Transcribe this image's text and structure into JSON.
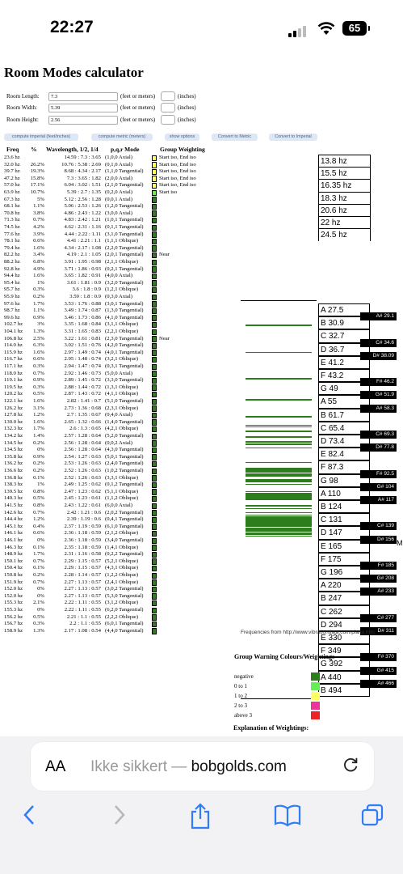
{
  "status_bar": {
    "time": "22:27",
    "battery": "65"
  },
  "page": {
    "title": "Room Modes calculator",
    "inputs": [
      {
        "label": "Room Length:",
        "value": "7.3",
        "unit": "(feet or meters)",
        "unit2": "(inches)"
      },
      {
        "label": "Room Width:",
        "value": "5.39",
        "unit": "(feet or meters)",
        "unit2": "(inches)"
      },
      {
        "label": "Room Height:",
        "value": "2.56",
        "unit": "(feet or meters)",
        "unit2": "(inches)"
      }
    ],
    "buttons": [
      "compute imperial (feet/inches)",
      "compute metric (meters)",
      "show options",
      "Convert to Metric",
      "Convert to Imperial"
    ],
    "headers": {
      "freq": "Freq",
      "pct": "%",
      "wave": "Wavelength, 1/2, 1/4",
      "mode": "p,q,r Mode",
      "group": "Group Weighting"
    },
    "rows": [
      {
        "f": "23.6 hz",
        "p": "",
        "w": "14.59 : 7.3 : 3.65",
        "m": "(1,0,0 Axial)",
        "g": "Start iso, End iso",
        "c": "#ffff66"
      },
      {
        "f": "32.0 hz",
        "p": "26.2%",
        "w": "10.76 : 5.38 : 2.69",
        "m": "(0,1,0 Axial)",
        "g": "Start iso, End iso",
        "c": "#ffff66"
      },
      {
        "f": "39.7 hz",
        "p": "19.3%",
        "w": "8.68 : 4.34 : 2.17",
        "m": "(1,1,0 Tangential)",
        "g": "Start iso, End iso",
        "c": "#ffff66"
      },
      {
        "f": "47.2 hz",
        "p": "15.8%",
        "w": "7.3 : 3.65 : 1.82",
        "m": "(2,0,0 Axial)",
        "g": "Start iso, End iso",
        "c": "#ffff66"
      },
      {
        "f": "57.0 hz",
        "p": "17.1%",
        "w": "6.04 : 3.02 : 1.51",
        "m": "(2,1,0 Tangential)",
        "g": "Start iso, End iso",
        "c": "#ffff66"
      },
      {
        "f": "63.9 hz",
        "p": "10.7%",
        "w": "5.39 : 2.7 : 1.35",
        "m": "(0,2,0 Axial)",
        "g": "Start iso",
        "c": "#66ee55"
      },
      {
        "f": "67.3 hz",
        "p": "5%",
        "w": "5.12 : 2.56 : 1.28",
        "m": "(0,0,1 Axial)",
        "g": "",
        "c": "#2d7d1d"
      },
      {
        "f": "68.1 hz",
        "p": "1.1%",
        "w": "5.06 : 2.53 : 1.26",
        "m": "(1,2,0 Tangential)",
        "g": "",
        "c": "#2d7d1d"
      },
      {
        "f": "70.8 hz",
        "p": "3.8%",
        "w": "4.86 : 2.43 : 1.22",
        "m": "(3,0,0 Axial)",
        "g": "",
        "c": "#2d7d1d"
      },
      {
        "f": "71.3 hz",
        "p": "0.7%",
        "w": "4.83 : 2.42 : 1.21",
        "m": "(1,0,1 Tangential)",
        "g": "",
        "c": "#2d7d1d"
      },
      {
        "f": "74.5 hz",
        "p": "4.2%",
        "w": "4.62 : 2.31 : 1.16",
        "m": "(0,1,1 Tangential)",
        "g": "",
        "c": "#2d7d1d"
      },
      {
        "f": "77.6 hz",
        "p": "3.9%",
        "w": "4.44 : 2.22 : 1.11",
        "m": "(3,1,0 Tangential)",
        "g": "",
        "c": "#2d7d1d"
      },
      {
        "f": "78.1 hz",
        "p": "0.6%",
        "w": "4.41 : 2.21 : 1.1",
        "m": "(1,1,1 Oblique)",
        "g": "",
        "c": "#2d7d1d"
      },
      {
        "f": "79.4 hz",
        "p": "1.6%",
        "w": "4.34 : 2.17 : 1.08",
        "m": "(2,2,0 Tangential)",
        "g": "",
        "c": "#2d7d1d"
      },
      {
        "f": "82.2 hz",
        "p": "3.4%",
        "w": "4.19 : 2.1 : 1.05",
        "m": "(2,0,1 Tangential)",
        "g": "Near",
        "c": "#2d7d1d"
      },
      {
        "f": "88.2 hz",
        "p": "6.8%",
        "w": "3.91 : 1.95 : 0.98",
        "m": "(2,1,1 Oblique)",
        "g": "",
        "c": "#2d7d1d"
      },
      {
        "f": "92.8 hz",
        "p": "4.9%",
        "w": "3.71 : 1.86 : 0.93",
        "m": "(0,2,1 Tangential)",
        "g": "",
        "c": "#2d7d1d"
      },
      {
        "f": "94.4 hz",
        "p": "1.6%",
        "w": "3.65 : 1.82 : 0.91",
        "m": "(4,0,0 Axial)",
        "g": "",
        "c": "#2d7d1d"
      },
      {
        "f": "95.4 hz",
        "p": "1%",
        "w": "3.61 : 1.81 : 0.9",
        "m": "(3,2,0 Tangential)",
        "g": "",
        "c": "#2d7d1d"
      },
      {
        "f": "95.7 hz",
        "p": "0.3%",
        "w": "3.6 : 1.8 : 0.9",
        "m": "(1,2,1 Oblique)",
        "g": "",
        "c": "#2d7d1d"
      },
      {
        "f": "95.9 hz",
        "p": "0.2%",
        "w": "3.59 : 1.8 : 0.9",
        "m": "(0,3,0 Axial)",
        "g": "",
        "c": "#2d7d1d"
      },
      {
        "f": "97.6 hz",
        "p": "1.7%",
        "w": "3.53 : 1.76 : 0.88",
        "m": "(3,0,1 Tangential)",
        "g": "",
        "c": "#2d7d1d"
      },
      {
        "f": "98.7 hz",
        "p": "1.1%",
        "w": "3.49 : 1.74 : 0.87",
        "m": "(1,3,0 Tangential)",
        "g": "",
        "c": "#2d7d1d"
      },
      {
        "f": "99.6 hz",
        "p": "0.9%",
        "w": "3.46 : 1.73 : 0.86",
        "m": "(4,1,0 Tangential)",
        "g": "",
        "c": "#2d7d1d"
      },
      {
        "f": "102.7 hz",
        "p": "3%",
        "w": "3.35 : 1.68 : 0.84",
        "m": "(3,1,1 Oblique)",
        "g": "",
        "c": "#2d7d1d"
      },
      {
        "f": "104.1 hz",
        "p": "1.3%",
        "w": "3.31 : 1.65 : 0.83",
        "m": "(2,2,1 Oblique)",
        "g": "",
        "c": "#2d7d1d"
      },
      {
        "f": "106.8 hz",
        "p": "2.5%",
        "w": "3.22 : 1.61 : 0.81",
        "m": "(2,3,0 Tangential)",
        "g": "Near",
        "c": "#2d7d1d"
      },
      {
        "f": "114.0 hz",
        "p": "6.3%",
        "w": "3.02 : 1.51 : 0.76",
        "m": "(4,2,0 Tangential)",
        "g": "",
        "c": "#2d7d1d"
      },
      {
        "f": "115.9 hz",
        "p": "1.6%",
        "w": "2.97 : 1.49 : 0.74",
        "m": "(4,0,1 Tangential)",
        "g": "",
        "c": "#2d7d1d"
      },
      {
        "f": "116.7 hz",
        "p": "0.6%",
        "w": "2.95 : 1.48 : 0.74",
        "m": "(3,2,1 Oblique)",
        "g": "",
        "c": "#2d7d1d"
      },
      {
        "f": "117.1 hz",
        "p": "0.3%",
        "w": "2.94 : 1.47 : 0.74",
        "m": "(0,3,1 Tangential)",
        "g": "",
        "c": "#2d7d1d"
      },
      {
        "f": "118.0 hz",
        "p": "0.7%",
        "w": "2.92 : 1.46 : 0.73",
        "m": "(5,0,0 Axial)",
        "g": "",
        "c": "#2d7d1d"
      },
      {
        "f": "119.1 hz",
        "p": "0.9%",
        "w": "2.89 : 1.45 : 0.72",
        "m": "(3,3,0 Tangential)",
        "g": "",
        "c": "#2d7d1d"
      },
      {
        "f": "119.5 hz",
        "p": "0.3%",
        "w": "2.88 : 1.44 : 0.72",
        "m": "(1,3,1 Oblique)",
        "g": "",
        "c": "#2d7d1d"
      },
      {
        "f": "120.2 hz",
        "p": "0.5%",
        "w": "2.87 : 1.43 : 0.72",
        "m": "(4,1,1 Oblique)",
        "g": "",
        "c": "#2d7d1d"
      },
      {
        "f": "122.1 hz",
        "p": "1.6%",
        "w": "2.82 : 1.41 : 0.7",
        "m": "(5,1,0 Tangential)",
        "g": "",
        "c": "#2d7d1d"
      },
      {
        "f": "126.2 hz",
        "p": "3.1%",
        "w": "2.73 : 1.36 : 0.68",
        "m": "(2,3,1 Oblique)",
        "g": "",
        "c": "#2d7d1d"
      },
      {
        "f": "127.8 hz",
        "p": "1.2%",
        "w": "2.7 : 1.35 : 0.67",
        "m": "(0,4,0 Axial)",
        "g": "",
        "c": "#2d7d1d"
      },
      {
        "f": "130.0 hz",
        "p": "1.6%",
        "w": "2.65 : 1.32 : 0.66",
        "m": "(1,4,0 Tangential)",
        "g": "",
        "c": "#2d7d1d"
      },
      {
        "f": "132.3 hz",
        "p": "1.7%",
        "w": "2.6 : 1.3 : 0.65",
        "m": "(4,2,1 Oblique)",
        "g": "",
        "c": "#2d7d1d"
      },
      {
        "f": "134.2 hz",
        "p": "1.4%",
        "w": "2.57 : 1.28 : 0.64",
        "m": "(5,2,0 Tangential)",
        "g": "",
        "c": "#2d7d1d"
      },
      {
        "f": "134.5 hz",
        "p": "0.2%",
        "w": "2.56 : 1.28 : 0.64",
        "m": "(0,0,2 Axial)",
        "g": "",
        "c": "#2d7d1d"
      },
      {
        "f": "134.5 hz",
        "p": "0%",
        "w": "2.56 : 1.28 : 0.64",
        "m": "(4,3,0 Tangential)",
        "g": "",
        "c": "#2d7d1d"
      },
      {
        "f": "135.8 hz",
        "p": "0.9%",
        "w": "2.54 : 1.27 : 0.63",
        "m": "(5,0,1 Tangential)",
        "g": "",
        "c": "#2d7d1d"
      },
      {
        "f": "136.2 hz",
        "p": "0.2%",
        "w": "2.53 : 1.26 : 0.63",
        "m": "(2,4,0 Tangential)",
        "g": "",
        "c": "#2d7d1d"
      },
      {
        "f": "136.6 hz",
        "p": "0.2%",
        "w": "2.52 : 1.26 : 0.63",
        "m": "(1,0,2 Tangential)",
        "g": "",
        "c": "#2d7d1d"
      },
      {
        "f": "136.8 hz",
        "p": "0.1%",
        "w": "2.52 : 1.26 : 0.63",
        "m": "(3,3,1 Oblique)",
        "g": "",
        "c": "#2d7d1d"
      },
      {
        "f": "138.3 hz",
        "p": "1%",
        "w": "2.49 : 1.25 : 0.62",
        "m": "(0,1,2 Tangential)",
        "g": "",
        "c": "#2d7d1d"
      },
      {
        "f": "139.5 hz",
        "p": "0.8%",
        "w": "2.47 : 1.23 : 0.62",
        "m": "(5,1,1 Oblique)",
        "g": "",
        "c": "#2d7d1d"
      },
      {
        "f": "140.3 hz",
        "p": "0.5%",
        "w": "2.45 : 1.23 : 0.61",
        "m": "(1,1,2 Oblique)",
        "g": "",
        "c": "#2d7d1d"
      },
      {
        "f": "141.5 hz",
        "p": "0.8%",
        "w": "2.43 : 1.22 : 0.61",
        "m": "(6,0,0 Axial)",
        "g": "",
        "c": "#2d7d1d"
      },
      {
        "f": "142.6 hz",
        "p": "0.7%",
        "w": "2.42 : 1.21 : 0.6",
        "m": "(2,0,2 Tangential)",
        "g": "",
        "c": "#2d7d1d"
      },
      {
        "f": "144.4 hz",
        "p": "1.2%",
        "w": "2.39 : 1.19 : 0.6",
        "m": "(0,4,1 Tangential)",
        "g": "",
        "c": "#2d7d1d"
      },
      {
        "f": "145.1 hz",
        "p": "0.4%",
        "w": "2.37 : 1.19 : 0.59",
        "m": "(6,1,0 Tangential)",
        "g": "",
        "c": "#2d7d1d"
      },
      {
        "f": "146.1 hz",
        "p": "0.6%",
        "w": "2.36 : 1.18 : 0.59",
        "m": "(2,1,2 Oblique)",
        "g": "",
        "c": "#2d7d1d"
      },
      {
        "f": "146.1 hz",
        "p": "0%",
        "w": "2.36 : 1.18 : 0.59",
        "m": "(3,4,0 Tangential)",
        "g": "",
        "c": "#2d7d1d"
      },
      {
        "f": "146.3 hz",
        "p": "0.1%",
        "w": "2.35 : 1.18 : 0.59",
        "m": "(1,4,1 Oblique)",
        "g": "",
        "c": "#2d7d1d"
      },
      {
        "f": "148.9 hz",
        "p": "1.7%",
        "w": "2.31 : 1.16 : 0.58",
        "m": "(0,2,2 Tangential)",
        "g": "",
        "c": "#2d7d1d"
      },
      {
        "f": "150.1 hz",
        "p": "0.7%",
        "w": "2.29 : 1.15 : 0.57",
        "m": "(5,2,1 Oblique)",
        "g": "",
        "c": "#2d7d1d"
      },
      {
        "f": "150.4 hz",
        "p": "0.1%",
        "w": "2.29 : 1.15 : 0.57",
        "m": "(4,3,1 Oblique)",
        "g": "",
        "c": "#2d7d1d"
      },
      {
        "f": "150.8 hz",
        "p": "0.2%",
        "w": "2.28 : 1.14 : 0.57",
        "m": "(1,2,2 Oblique)",
        "g": "",
        "c": "#2d7d1d"
      },
      {
        "f": "151.9 hz",
        "p": "0.7%",
        "w": "2.27 : 1.13 : 0.57",
        "m": "(2,4,1 Oblique)",
        "g": "",
        "c": "#2d7d1d"
      },
      {
        "f": "152.0 hz",
        "p": "0%",
        "w": "2.27 : 1.13 : 0.57",
        "m": "(3,0,2 Tangential)",
        "g": "",
        "c": "#2d7d1d"
      },
      {
        "f": "152.0 hz",
        "p": "0%",
        "w": "2.27 : 1.13 : 0.57",
        "m": "(5,3,0 Tangential)",
        "g": "",
        "c": "#2d7d1d"
      },
      {
        "f": "155.3 hz",
        "p": "2.1%",
        "w": "2.22 : 1.11 : 0.55",
        "m": "(3,1,2 Oblique)",
        "g": "",
        "c": "#2d7d1d"
      },
      {
        "f": "155.3 hz",
        "p": "0%",
        "w": "2.22 : 1.11 : 0.55",
        "m": "(6,2,0 Tangential)",
        "g": "",
        "c": "#2d7d1d"
      },
      {
        "f": "156.2 hz",
        "p": "0.5%",
        "w": "2.21 : 1.1 : 0.55",
        "m": "(2,2,2 Oblique)",
        "g": "",
        "c": "#2d7d1d"
      },
      {
        "f": "156.7 hz",
        "p": "0.3%",
        "w": "2.2 : 1.1 : 0.55",
        "m": "(6,0,1 Tangential)",
        "g": "",
        "c": "#2d7d1d"
      },
      {
        "f": "158.9 hz",
        "p": "1.3%",
        "w": "2.17 : 1.08 : 0.54",
        "m": "(4,4,0 Tangential)",
        "g": "",
        "c": "#2d7d1d"
      }
    ],
    "hz_labels": [
      "13.8 hz",
      "15.5 hz",
      "16.35 hz",
      "18.3 hz",
      "20.6 hz",
      "22 hz",
      "24.5 hz"
    ],
    "white_keys": [
      "A 27.5",
      "B 30.9",
      "C 32.7",
      "D 36.7",
      "E 41.2",
      "F 43.2",
      "G 49",
      "A 55",
      "B 61.7",
      "C 65.4",
      "D 73.4",
      "E 82.4",
      "F 87.3",
      "G 98",
      "A 110",
      "B 124",
      "C 131",
      "D 147",
      "E 165",
      "F 175",
      "G 196",
      "A 220",
      "B 247",
      "C 262",
      "D 294",
      "E 330",
      "F 349",
      "G 392",
      "A 440",
      "B 494"
    ],
    "black_keys": [
      {
        "label": "A# 29.1",
        "after": 0
      },
      {
        "label": "C# 34.6",
        "after": 2
      },
      {
        "label": "D# 38.09",
        "after": 3
      },
      {
        "label": "F# 46.2",
        "after": 5
      },
      {
        "label": "G# 51.9",
        "after": 6
      },
      {
        "label": "A# 58.3",
        "after": 7
      },
      {
        "label": "C# 69.3",
        "after": 9
      },
      {
        "label": "D# 77.8",
        "after": 10
      },
      {
        "label": "F# 92.5",
        "after": 12
      },
      {
        "label": "G# 104",
        "after": 13
      },
      {
        "label": "A# 117",
        "after": 14
      },
      {
        "label": "C# 139",
        "after": 16
      },
      {
        "label": "D# 156",
        "after": 17
      },
      {
        "label": "F# 185",
        "after": 19
      },
      {
        "label": "G# 208",
        "after": 20
      },
      {
        "label": "A# 233",
        "after": 21
      },
      {
        "label": "C# 277",
        "after": 23
      },
      {
        "label": "D# 311",
        "after": 24
      },
      {
        "label": "F# 370",
        "after": 26
      },
      {
        "label": "G# 415",
        "after": 27
      },
      {
        "label": "A# 466",
        "after": 28
      }
    ],
    "edge_letter": "M",
    "credit": "Frequencies from http://www.vibrationdata.com/piano.htm",
    "legend": {
      "title": "Group Warning Colours/Weightings",
      "items": [
        {
          "label": "negative",
          "color": "#2d7d1d"
        },
        {
          "label": "0 to 1",
          "color": "#66ee55"
        },
        {
          "label": "1 to 2",
          "color": "#ffff66"
        },
        {
          "label": "2 to 3",
          "color": "#ee3399"
        },
        {
          "label": "above 3",
          "color": "#ee2222"
        }
      ]
    },
    "explanation_title": "Explanation of Weightings:"
  },
  "browser": {
    "aa": "AA",
    "url_prefix": "Ikke sikkert — ",
    "url_host": "bobgolds.com"
  }
}
